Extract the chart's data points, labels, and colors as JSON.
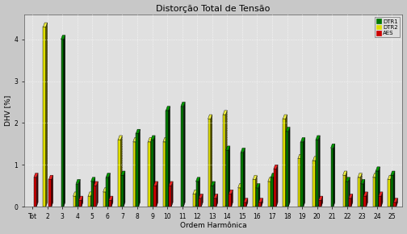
{
  "title": "Distorção Total de Tensão",
  "xlabel": "Ordem Harmônica",
  "ylabel": "DHV [%]",
  "categories": [
    "Tot",
    "2",
    "3",
    "4",
    "5",
    "6",
    "7",
    "8",
    "9",
    "10",
    "11",
    "12",
    "13",
    "14",
    "15",
    "16",
    "17",
    "18",
    "19",
    "20",
    "21",
    "22",
    "23",
    "24",
    "25"
  ],
  "dtr1": [
    0.0,
    0.0,
    4.0,
    0.55,
    0.6,
    0.7,
    0.75,
    1.75,
    1.6,
    2.3,
    2.4,
    0.6,
    0.5,
    1.35,
    1.3,
    0.45,
    0.7,
    1.8,
    1.55,
    1.6,
    1.4,
    0.6,
    0.55,
    0.85,
    0.75
  ],
  "dtr2": [
    0.0,
    4.3,
    0.0,
    0.25,
    0.25,
    0.35,
    1.6,
    1.55,
    1.55,
    1.55,
    0.0,
    0.3,
    2.1,
    2.2,
    0.45,
    0.65,
    0.6,
    2.1,
    1.15,
    1.1,
    0.0,
    0.75,
    0.7,
    0.7,
    0.65
  ],
  "aes": [
    0.7,
    0.65,
    0.0,
    0.15,
    0.5,
    0.15,
    0.0,
    0.0,
    0.5,
    0.5,
    0.0,
    0.2,
    0.2,
    0.3,
    0.1,
    0.1,
    0.9,
    0.0,
    0.0,
    0.15,
    0.0,
    0.2,
    0.25,
    0.25,
    0.1
  ],
  "color_dtr1": "#007700",
  "color_dtr2": "#dddd00",
  "color_aes": "#cc0000",
  "dark_dtr1": "#001800",
  "dark_dtr2": "#555500",
  "dark_aes": "#440000",
  "top_dtr1": "#009900",
  "top_dtr2": "#eeee44",
  "top_aes": "#ee2222",
  "bg_color": "#c8c8c8",
  "plot_bg_color": "#e0e0e0",
  "ylim": [
    0,
    4.6
  ],
  "yticks": [
    0,
    1,
    2,
    3,
    4
  ],
  "legend_labels": [
    "DTR1",
    "DTR2",
    "AES"
  ],
  "title_fontsize": 8,
  "axis_label_fontsize": 6.5,
  "tick_fontsize": 5.5
}
